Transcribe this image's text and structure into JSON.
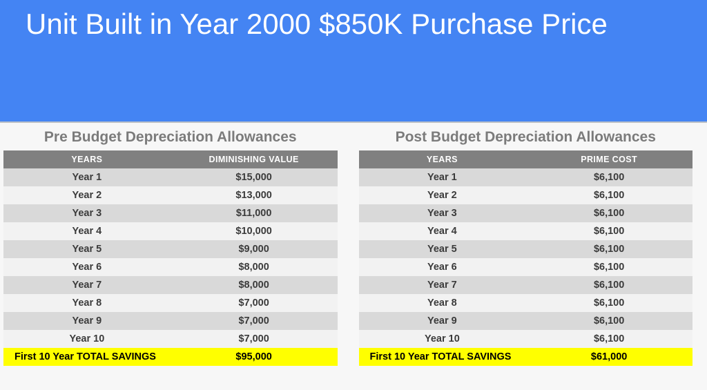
{
  "banner": {
    "title": "Unit Built in Year 2000 $850K Purchase Price"
  },
  "colors": {
    "banner_blue": "#4484f3",
    "header_gray": "#808080",
    "band_dark": "#d9d9d9",
    "band_light": "#f2f2f2",
    "total_yellow": "#ffff00",
    "title_gray": "#7b7b7b"
  },
  "tables": [
    {
      "title": "Pre Budget Depreciation Allowances",
      "columns": [
        "YEARS",
        "DIMINISHING VALUE"
      ],
      "rows": [
        [
          "Year 1",
          "$15,000"
        ],
        [
          "Year 2",
          "$13,000"
        ],
        [
          "Year 3",
          "$11,000"
        ],
        [
          "Year 4",
          "$10,000"
        ],
        [
          "Year 5",
          "$9,000"
        ],
        [
          "Year 6",
          "$8,000"
        ],
        [
          "Year 7",
          "$8,000"
        ],
        [
          "Year 8",
          "$7,000"
        ],
        [
          "Year 9",
          "$7,000"
        ],
        [
          "Year 10",
          "$7,000"
        ]
      ],
      "total": {
        "label": "First 10 Year TOTAL SAVINGS",
        "value": "$95,000"
      }
    },
    {
      "title": "Post Budget Depreciation Allowances",
      "columns": [
        "YEARS",
        "PRIME COST"
      ],
      "rows": [
        [
          "Year 1",
          "$6,100"
        ],
        [
          "Year 2",
          "$6,100"
        ],
        [
          "Year 3",
          "$6,100"
        ],
        [
          "Year 4",
          "$6,100"
        ],
        [
          "Year 5",
          "$6,100"
        ],
        [
          "Year 6",
          "$6,100"
        ],
        [
          "Year 7",
          "$6,100"
        ],
        [
          "Year 8",
          "$6,100"
        ],
        [
          "Year 9",
          "$6,100"
        ],
        [
          "Year 10",
          "$6,100"
        ]
      ],
      "total": {
        "label": "First 10 Year TOTAL SAVINGS",
        "value": "$61,000"
      }
    }
  ]
}
